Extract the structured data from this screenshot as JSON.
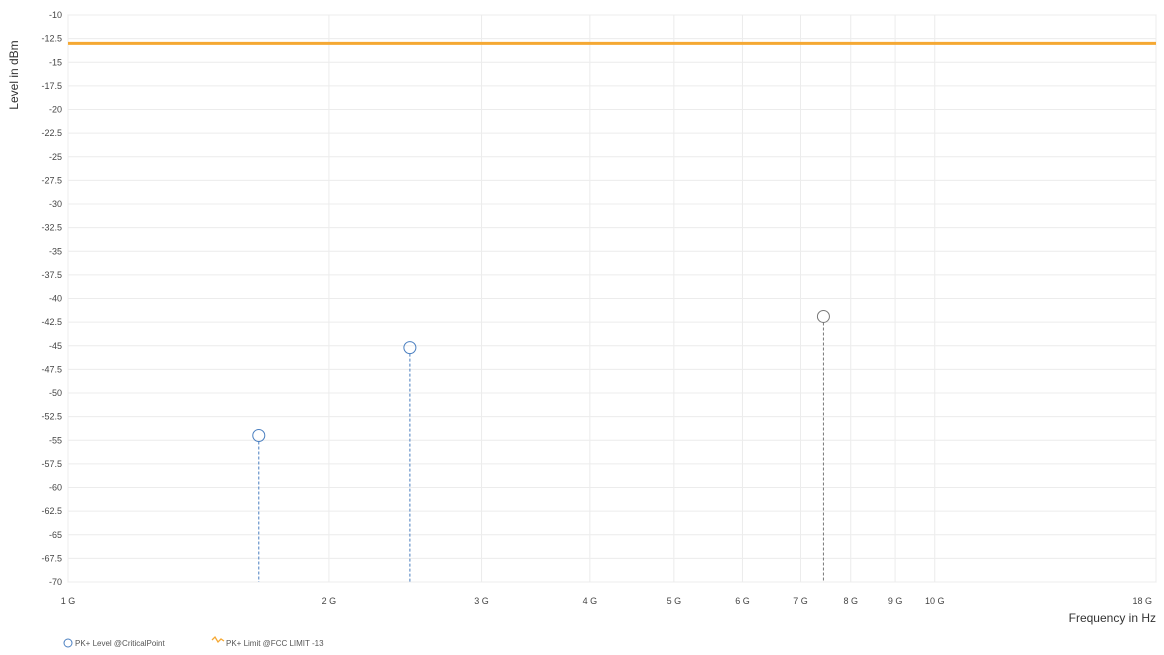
{
  "chart_data": {
    "type": "scatter",
    "title": "",
    "xlabel": "Frequency in Hz",
    "ylabel": "Level in dBm",
    "x_scale": "log",
    "xlim": [
      1000000000,
      18000000000
    ],
    "ylim": [
      -70,
      -10
    ],
    "x_ticks": [
      {
        "value": 1000000000,
        "label": "1 G"
      },
      {
        "value": 2000000000,
        "label": "2 G"
      },
      {
        "value": 3000000000,
        "label": "3 G"
      },
      {
        "value": 4000000000,
        "label": "4 G"
      },
      {
        "value": 5000000000,
        "label": "5 G"
      },
      {
        "value": 6000000000,
        "label": "6 G"
      },
      {
        "value": 7000000000,
        "label": "7 G"
      },
      {
        "value": 8000000000,
        "label": "8 G"
      },
      {
        "value": 9000000000,
        "label": "9 G"
      },
      {
        "value": 10000000000,
        "label": "10 G"
      },
      {
        "value": 18000000000,
        "label": "18 G"
      }
    ],
    "y_ticks": [
      {
        "value": -10,
        "label": "-10"
      },
      {
        "value": -12.5,
        "label": "-12.5"
      },
      {
        "value": -15,
        "label": "-15"
      },
      {
        "value": -17.5,
        "label": "-17.5"
      },
      {
        "value": -20,
        "label": "-20"
      },
      {
        "value": -22.5,
        "label": "-22.5"
      },
      {
        "value": -25,
        "label": "-25"
      },
      {
        "value": -27.5,
        "label": "-27.5"
      },
      {
        "value": -30,
        "label": "-30"
      },
      {
        "value": -32.5,
        "label": "-32.5"
      },
      {
        "value": -35,
        "label": "-35"
      },
      {
        "value": -37.5,
        "label": "-37.5"
      },
      {
        "value": -40,
        "label": "-40"
      },
      {
        "value": -42.5,
        "label": "-42.5"
      },
      {
        "value": -45,
        "label": "-45"
      },
      {
        "value": -47.5,
        "label": "-47.5"
      },
      {
        "value": -50,
        "label": "-50"
      },
      {
        "value": -52.5,
        "label": "-52.5"
      },
      {
        "value": -55,
        "label": "-55"
      },
      {
        "value": -57.5,
        "label": "-57.5"
      },
      {
        "value": -60,
        "label": "-60"
      },
      {
        "value": -62.5,
        "label": "-62.5"
      },
      {
        "value": -65,
        "label": "-65"
      },
      {
        "value": -67.5,
        "label": "-67.5"
      },
      {
        "value": -70,
        "label": "-70"
      }
    ],
    "grid": true,
    "legend_position": "bottom-left",
    "series": [
      {
        "name": "PK+ Level @CriticalPoint",
        "type": "scatter",
        "marker": "circle",
        "stems": true,
        "color": "#4a7fc0",
        "points": [
          {
            "x": 1660000000,
            "y": -54.5
          },
          {
            "x": 2480000000,
            "y": -45.2
          }
        ]
      },
      {
        "name": "",
        "type": "scatter",
        "marker": "circle",
        "stems": true,
        "color": "#777777",
        "points": [
          {
            "x": 7440000000,
            "y": -41.9
          }
        ]
      },
      {
        "name": "PK+ Limit @FCC LIMIT -13",
        "type": "line",
        "color": "#f5a833",
        "points": [
          {
            "x": 1000000000,
            "y": -13
          },
          {
            "x": 18000000000,
            "y": -13
          }
        ]
      }
    ]
  }
}
